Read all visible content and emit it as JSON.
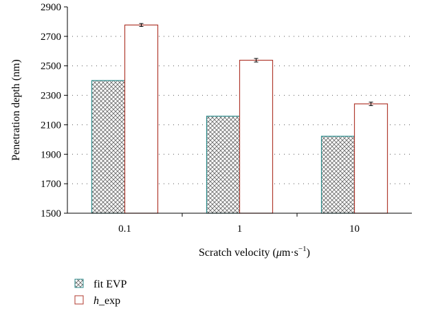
{
  "chart_data": {
    "type": "bar",
    "categories": [
      "0.1",
      "1",
      "10"
    ],
    "series": [
      {
        "name": "fit EVP",
        "values": [
          2400,
          2158,
          2022
        ],
        "color": "#2a8a8a",
        "fill": "crosshatch"
      },
      {
        "name": "h_exp",
        "values": [
          2777,
          2538,
          2242
        ],
        "errors": [
          10,
          12,
          12
        ],
        "color": "#b03a2e",
        "fill": "white"
      }
    ],
    "xlabel": "Scratch velocity (μm·s⁻¹)",
    "xlabel_parts": {
      "prefix": "Scratch velocity (",
      "mu": "μ",
      "unit": "m·s",
      "exp": "−1",
      "suffix": ")"
    },
    "ylabel": "Penetration depth (nm)",
    "ylim": [
      1500,
      2900
    ],
    "yticks": [
      1500,
      1700,
      1900,
      2100,
      2300,
      2500,
      2700,
      2900
    ],
    "grid": "dotted horizontal",
    "legend": {
      "placement": "bottom-left",
      "entries": [
        {
          "text": "fit EVP"
        },
        {
          "text_italic": "h",
          "text_rest": "_exp"
        }
      ]
    }
  }
}
